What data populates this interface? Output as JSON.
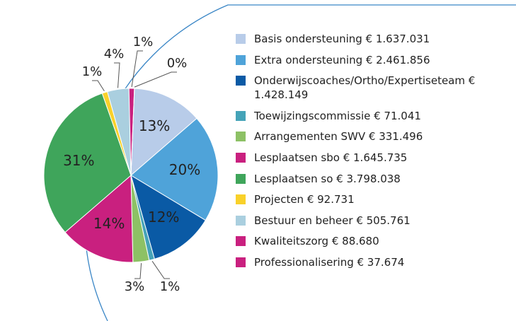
{
  "chart_data": {
    "type": "pie",
    "series": [
      {
        "name": "Basis ondersteuning € 1.637.031",
        "color": "#b8cce9",
        "values": [
          13
        ]
      },
      {
        "name": "Extra ondersteuning € 2.461.856",
        "color": "#4fa3d9",
        "values": [
          20
        ]
      },
      {
        "name": "Onderwijscoaches/Ortho/Expertiseteam € 1.428.149",
        "color": "#0a5aa5",
        "values": [
          12
        ]
      },
      {
        "name": "Toewijzingscommissie € 71.041",
        "color": "#45a3b8",
        "values": [
          1
        ]
      },
      {
        "name": "Arrangementen SWV € 331.496",
        "color": "#8dc165",
        "values": [
          3
        ]
      },
      {
        "name": "Lesplaatsen sbo € 1.645.735",
        "color": "#c9207f",
        "values": [
          14
        ]
      },
      {
        "name": "Lesplaatsen so € 3.798.038",
        "color": "#3fa55b",
        "values": [
          31
        ]
      },
      {
        "name": "Projecten € 92.731",
        "color": "#f9d12a",
        "values": [
          1
        ]
      },
      {
        "name": "Bestuur en beheer € 505.761",
        "color": "#aacfdf",
        "values": [
          4
        ]
      },
      {
        "name": "Kwaliteitszorg € 88.680",
        "color": "#c9207f",
        "values": [
          1
        ]
      },
      {
        "name": "Professionalisering € 37.674",
        "color": "#c9207f",
        "values": [
          0
        ]
      }
    ],
    "value_labels": [
      "13%",
      "20%",
      "12%",
      "1%",
      "3%",
      "14%",
      "31%",
      "1%",
      "4%",
      "1%",
      "0%"
    ]
  }
}
